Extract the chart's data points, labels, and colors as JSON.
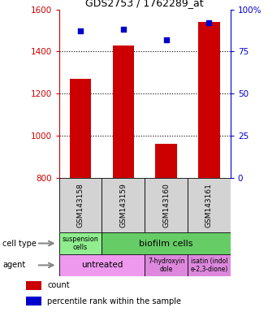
{
  "title": "GDS2753 / 1762289_at",
  "samples": [
    "GSM143158",
    "GSM143159",
    "GSM143160",
    "GSM143161"
  ],
  "counts": [
    1270,
    1430,
    960,
    1540
  ],
  "percentile_ranks": [
    87,
    88,
    82,
    92
  ],
  "ylim_left": [
    800,
    1600
  ],
  "ylim_right": [
    0,
    100
  ],
  "yticks_left": [
    800,
    1000,
    1200,
    1400,
    1600
  ],
  "yticks_right": [
    0,
    25,
    50,
    75,
    100
  ],
  "bar_color": "#cc0000",
  "dot_color": "#0000cc",
  "bar_width": 0.5,
  "left_label_color": "#cc0000",
  "right_label_color": "#0000cc",
  "bg_color": "#ffffff",
  "sample_box_color": "#d3d3d3",
  "cell_type_susp_color": "#90ee90",
  "cell_type_bio_color": "#66cc66",
  "agent_color": "#ee99ee",
  "agent_hi_color": "#dd88dd"
}
